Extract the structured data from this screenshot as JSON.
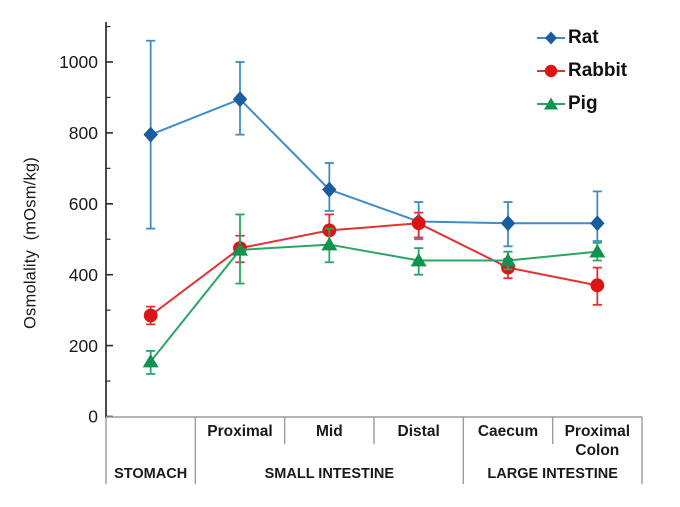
{
  "figure": {
    "background": "#ffffff",
    "text_color": "#1a1a1a",
    "axis_color": "#2b2b2b",
    "table_line_color": "#9b9b9b"
  },
  "chart_data": {
    "type": "line",
    "title": "",
    "xlabel": "",
    "ylabel": "Osmolality  (mOsm/kg)",
    "ylim": [
      0,
      1113
    ],
    "yticks_major": [
      0,
      200,
      400,
      600,
      800,
      1000
    ],
    "yticks_minor": [
      100,
      300,
      500,
      700,
      900,
      1100
    ],
    "grid": false,
    "legend_position": "top-right",
    "categories": [
      "Stomach",
      "Proximal",
      "Mid",
      "Distal",
      "Caecum",
      "Proximal Colon"
    ],
    "x_axis": {
      "cells": [
        {
          "lines": []
        },
        {
          "lines": [
            "Proximal"
          ]
        },
        {
          "lines": [
            "Mid"
          ]
        },
        {
          "lines": [
            "Distal"
          ]
        },
        {
          "lines": [
            "Caecum"
          ]
        },
        {
          "lines": [
            "Proximal",
            "Colon"
          ]
        }
      ],
      "groups": [
        {
          "label": "STOMACH",
          "from": 0,
          "to": 1
        },
        {
          "label": "SMALL INTESTINE",
          "from": 1,
          "to": 4
        },
        {
          "label": "LARGE INTESTINE",
          "from": 4,
          "to": 6
        }
      ]
    },
    "series": [
      {
        "name": "Rat",
        "marker": "diamond",
        "marker_color": "#1a5c9e",
        "line_color": "#418cc7",
        "values": [
          795,
          895,
          640,
          550,
          545,
          545
        ],
        "err_hi": [
          265,
          105,
          75,
          55,
          60,
          90
        ],
        "err_lo": [
          265,
          100,
          60,
          50,
          65,
          50
        ]
      },
      {
        "name": "Rabbit",
        "marker": "circle",
        "marker_color": "#dc1414",
        "line_color": "#e23333",
        "values": [
          285,
          475,
          525,
          545,
          420,
          370
        ],
        "err_hi": [
          25,
          35,
          45,
          30,
          25,
          50
        ],
        "err_lo": [
          25,
          40,
          45,
          40,
          30,
          55
        ]
      },
      {
        "name": "Pig",
        "marker": "triangle",
        "marker_color": "#12924f",
        "line_color": "#2aa563",
        "values": [
          155,
          470,
          485,
          440,
          440,
          465
        ],
        "err_hi": [
          30,
          100,
          45,
          35,
          25,
          25
        ],
        "err_lo": [
          35,
          95,
          50,
          40,
          25,
          25
        ]
      }
    ]
  }
}
